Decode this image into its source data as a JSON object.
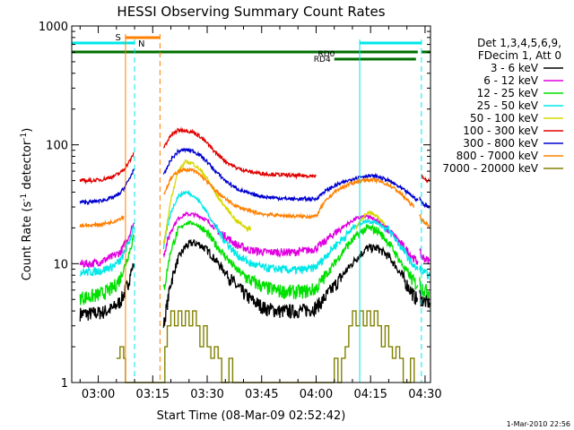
{
  "chart_data": {
    "type": "line",
    "title": "HESSI Observing Summary Count Rates",
    "xlabel": "Start Time (08-Mar-09 02:52:42)",
    "ylabel_main": "Count Rate (s",
    "ylabel_exp1": "-1",
    "ylabel_mid": " detector",
    "ylabel_exp2": "-1",
    "ylabel_close": ")",
    "footer_date": "1-Mar-2010 22:56",
    "y_scale": "log",
    "ylim": [
      1,
      1000
    ],
    "xlim": [
      "02:52:42",
      "04:31:30"
    ],
    "x_ticks": [
      "03:00",
      "03:15",
      "03:30",
      "03:45",
      "04:00",
      "04:15",
      "04:30"
    ],
    "y_ticks": [
      "1",
      "10",
      "100",
      "1000"
    ],
    "legend": {
      "header": [
        "Det 1,3,4,5,6,9,",
        "FDecim 1, Att 0"
      ],
      "entries": [
        {
          "label": "3 - 6 keV",
          "color": "#000000"
        },
        {
          "label": "6 - 12 keV",
          "color": "#e000e0"
        },
        {
          "label": "12 - 25 keV",
          "color": "#00e000"
        },
        {
          "label": "25 - 50 keV",
          "color": "#00e8e8"
        },
        {
          "label": "50 - 100 keV",
          "color": "#d8d800"
        },
        {
          "label": "100 - 300 keV",
          "color": "#e00000"
        },
        {
          "label": "300 - 800 keV",
          "color": "#0000d0"
        },
        {
          "label": "800 - 7000 keV",
          "color": "#ff8000"
        },
        {
          "label": "7000 - 20000 keV",
          "color": "#808000"
        }
      ]
    },
    "flag_labels": {
      "saa": "S",
      "night": "N",
      "rd0": "RD0",
      "rd4": "RD4"
    },
    "flag_colors": {
      "saa": "#ff8000",
      "night": "#00e8e8",
      "rd": "#007000"
    },
    "night_edges": [
      "03:10:00",
      "04:29:00"
    ],
    "day_edges": [
      "04:12:00"
    ],
    "saa_edges": [
      "03:07:30",
      "03:17:00"
    ],
    "saa_interval": [
      "03:07:30",
      "03:17:00"
    ],
    "night_intervals": [
      [
        "02:52:42",
        "03:10:00"
      ],
      [
        "04:12:00",
        "04:29:00"
      ]
    ],
    "rd0_intervals": [
      [
        "02:52:42",
        "04:28:00"
      ],
      [
        "04:29:00",
        "04:31:30"
      ]
    ],
    "rd4_interval": [
      "04:05:00",
      "04:27:30"
    ],
    "series": [
      {
        "name": "3 - 6 keV",
        "color": "#000000",
        "segments": [
          {
            "t": [
              "02:55",
              "02:58",
              "03:01",
              "03:04",
              "03:06",
              "03:07",
              "03:08",
              "03:09",
              "03:09:50"
            ],
            "v": [
              3.8,
              3.8,
              3.9,
              4.2,
              4.8,
              5.5,
              6.5,
              8.5,
              10
            ]
          },
          {
            "t": [
              "03:18:00",
              "03:20",
              "03:22",
              "03:24",
              "03:26",
              "03:28",
              "03:30",
              "03:32",
              "03:35",
              "03:38",
              "03:42",
              "03:46",
              "03:50",
              "03:54",
              "03:58",
              "04:00",
              "04:02",
              "04:05",
              "04:08",
              "04:11",
              "04:14",
              "04:17",
              "04:20",
              "04:22",
              "04:24",
              "04:26",
              "04:27",
              "04:28"
            ],
            "v": [
              3.0,
              7,
              11,
              14,
              15,
              14.5,
              13,
              11,
              8.5,
              6.5,
              5.0,
              4.2,
              4.0,
              4.0,
              4.1,
              4.3,
              5.0,
              6.5,
              8.5,
              11,
              13.5,
              13.5,
              11.5,
              9.5,
              7.5,
              6.0,
              5.3,
              5.0
            ]
          },
          {
            "t": [
              "04:28:30",
              "04:29",
              "04:30",
              "04:31:15"
            ],
            "v": [
              5.5,
              5.0,
              4.8,
              4.7
            ]
          }
        ]
      },
      {
        "name": "6 - 12 keV",
        "color": "#e000e0",
        "segments": [
          {
            "t": [
              "02:55",
              "02:58",
              "03:01",
              "03:04",
              "03:06",
              "03:07",
              "03:08",
              "03:09",
              "03:09:50"
            ],
            "v": [
              10,
              10,
              10.5,
              11.5,
              12.5,
              14,
              16,
              19,
              22
            ]
          },
          {
            "t": [
              "03:18:00",
              "03:20",
              "03:22",
              "03:24",
              "03:26",
              "03:28",
              "03:30",
              "03:32",
              "03:35",
              "03:38",
              "03:42",
              "03:46",
              "03:50",
              "03:54",
              "03:58",
              "04:00",
              "04:02",
              "04:05",
              "04:08",
              "04:11",
              "04:14",
              "04:17",
              "04:20",
              "04:22",
              "04:24",
              "04:26",
              "04:27",
              "04:28"
            ],
            "v": [
              12,
              19,
              24,
              26,
              26,
              25,
              23,
              20,
              17,
              14.5,
              13,
              12.5,
              12.5,
              12.5,
              13,
              13.5,
              15,
              18,
              21,
              24,
              25,
              23,
              19,
              16.5,
              14,
              12,
              11,
              10.5
            ]
          },
          {
            "t": [
              "04:28:30",
              "04:29",
              "04:30",
              "04:31:15"
            ],
            "v": [
              12.5,
              11.5,
              11,
              10.5
            ]
          }
        ]
      },
      {
        "name": "12 - 25 keV",
        "color": "#00e000",
        "segments": [
          {
            "t": [
              "02:55",
              "02:58",
              "03:01",
              "03:04",
              "03:06",
              "03:07",
              "03:08",
              "03:09",
              "03:09:50"
            ],
            "v": [
              5.2,
              5.3,
              5.6,
              6.2,
              7.5,
              9,
              11,
              14,
              17
            ]
          },
          {
            "t": [
              "03:18:00",
              "03:20",
              "03:22",
              "03:24",
              "03:26",
              "03:28",
              "03:30",
              "03:32",
              "03:35",
              "03:38",
              "03:42",
              "03:46",
              "03:50",
              "03:54",
              "03:58",
              "04:00",
              "04:02",
              "04:05",
              "04:08",
              "04:11",
              "04:14",
              "04:17",
              "04:20",
              "04:22",
              "04:24",
              "04:26",
              "04:27",
              "04:28"
            ],
            "v": [
              6,
              13,
              19,
              22,
              22,
              20.5,
              18,
              15,
              11.5,
              9,
              7.2,
              6.3,
              5.9,
              5.8,
              5.9,
              6.2,
              7.5,
              10,
              13.5,
              17,
              20,
              19,
              15,
              12,
              9.5,
              7.8,
              7.0,
              6.6
            ]
          },
          {
            "t": [
              "04:28:30",
              "04:29",
              "04:30",
              "04:31:15"
            ],
            "v": [
              7.0,
              6.4,
              6.0,
              5.8
            ]
          }
        ]
      },
      {
        "name": "25 - 50 keV",
        "color": "#00e8e8",
        "segments": [
          {
            "t": [
              "02:55",
              "02:58",
              "03:01",
              "03:04",
              "03:06",
              "03:07",
              "03:08",
              "03:09",
              "03:09:50"
            ],
            "v": [
              8.5,
              8.5,
              8.8,
              9.5,
              10.5,
              12,
              14,
              17,
              21
            ]
          },
          {
            "t": [
              "03:18:00",
              "03:20",
              "03:22",
              "03:24",
              "03:26",
              "03:28",
              "03:30",
              "03:32",
              "03:35",
              "03:38",
              "03:42",
              "03:46",
              "03:50",
              "03:54",
              "03:58",
              "04:00",
              "04:02",
              "04:05",
              "04:08",
              "04:11",
              "04:14",
              "04:17",
              "04:20",
              "04:22",
              "04:24",
              "04:26",
              "04:27",
              "04:28"
            ],
            "v": [
              14,
              27,
              37,
              40,
              38,
              33,
              27,
              21,
              15.5,
              12,
              10,
              9.2,
              9.0,
              8.8,
              9.0,
              9.4,
              11,
              14,
              17,
              21,
              23,
              22,
              19,
              16,
              13,
              10.5,
              9.5,
              8.8
            ]
          },
          {
            "t": [
              "04:28:30",
              "04:29",
              "04:30",
              "04:31:15"
            ],
            "v": [
              9.5,
              8.8,
              8.3,
              8.0
            ]
          }
        ]
      },
      {
        "name": "50 - 100 keV",
        "color": "#d8d800",
        "segments": [
          {
            "t": [
              "03:18:00",
              "03:20",
              "03:22",
              "03:24",
              "03:26",
              "03:28",
              "03:30",
              "03:32",
              "03:35",
              "03:38",
              "03:42"
            ],
            "v": [
              14,
              35,
              60,
              72,
              70,
              62,
              52,
              40,
              30,
              23,
              19
            ]
          },
          {
            "t": [
              "04:11",
              "04:13",
              "04:15",
              "04:17",
              "04:19"
            ],
            "v": [
              20,
              25,
              27,
              25,
              21
            ]
          }
        ]
      },
      {
        "name": "100 - 300 keV",
        "color": "#e00000",
        "segments": [
          {
            "t": [
              "02:55",
              "02:58",
              "03:01",
              "03:04",
              "03:06",
              "03:07",
              "03:08",
              "03:09",
              "03:09:50"
            ],
            "v": [
              50,
              50,
              51,
              54,
              58,
              62,
              68,
              76,
              85
            ]
          },
          {
            "t": [
              "03:18:00",
              "03:20",
              "03:22",
              "03:24",
              "03:26",
              "03:28",
              "03:30",
              "03:32",
              "03:35",
              "03:38",
              "03:42",
              "03:46",
              "03:50",
              "03:54",
              "03:58",
              "04:00"
            ],
            "v": [
              95,
              120,
              133,
              133,
              128,
              118,
              103,
              88,
              73,
              64,
              59,
              57,
              56,
              55,
              55,
              55
            ]
          },
          {
            "t": [
              "04:29",
              "04:29:40",
              "04:30:20",
              "04:31:15"
            ],
            "v": [
              55,
              52,
              50,
              50
            ]
          }
        ]
      },
      {
        "name": "300 - 800 keV",
        "color": "#0000d0",
        "segments": [
          {
            "t": [
              "02:55",
              "02:58",
              "03:01",
              "03:04",
              "03:06",
              "03:07",
              "03:08",
              "03:09",
              "03:09:50"
            ],
            "v": [
              33,
              33,
              34,
              36,
              39,
              43,
              48,
              55,
              63
            ]
          },
          {
            "t": [
              "03:18:00",
              "03:20",
              "03:22",
              "03:24",
              "03:26",
              "03:28",
              "03:30",
              "03:32",
              "03:35",
              "03:38",
              "03:42",
              "03:46",
              "03:50",
              "03:54",
              "03:58",
              "04:00",
              "04:02",
              "04:05",
              "04:08",
              "04:11",
              "04:14",
              "04:17",
              "04:20",
              "04:22",
              "04:24",
              "04:26",
              "04:27",
              "04:28"
            ],
            "v": [
              55,
              75,
              88,
              91,
              89,
              82,
              72,
              61,
              50,
              43,
              38.5,
              36.5,
              35.5,
              35,
              35,
              35,
              40,
              45,
              49,
              53,
              55,
              54,
              50,
              46,
              42,
              38,
              36,
              34
            ]
          },
          {
            "t": [
              "04:28:30",
              "04:29",
              "04:30",
              "04:31:15"
            ],
            "v": [
              36,
              33,
              31,
              30
            ]
          }
        ]
      },
      {
        "name": "800 - 7000 keV",
        "color": "#ff8000",
        "segments": [
          {
            "t": [
              "02:55",
              "02:58",
              "03:01",
              "03:04",
              "03:06",
              "03:07"
            ],
            "v": [
              21,
              21,
              21.5,
              22.5,
              24,
              25
            ]
          },
          {
            "t": [
              "03:18:00",
              "03:20",
              "03:22",
              "03:24",
              "03:26",
              "03:28",
              "03:30",
              "03:32",
              "03:35",
              "03:38",
              "03:42",
              "03:46",
              "03:50",
              "03:54",
              "03:58",
              "04:00",
              "04:02",
              "04:05",
              "04:08",
              "04:11",
              "04:14",
              "04:17",
              "04:20",
              "04:22",
              "04:24",
              "04:26",
              "04:27"
            ],
            "v": [
              38,
              52,
              60,
              62,
              61,
              56,
              49,
              42,
              35,
              30.5,
              27.5,
              26,
              25.5,
              25,
              25,
              25,
              32,
              40,
              45,
              49,
              51,
              50,
              46,
              42,
              37,
              32,
              30
            ]
          },
          {
            "t": [
              "04:28:30",
              "04:29",
              "04:30",
              "04:31:15"
            ],
            "v": [
              26,
              23.5,
              22,
              21
            ]
          }
        ]
      }
    ],
    "series_7000": {
      "name": "7000 - 20000 keV",
      "color": "#808000",
      "steps": [
        [
          "03:05:00",
          1.6
        ],
        [
          "03:06:00",
          2.0
        ],
        [
          "03:07:00",
          1.6
        ],
        [
          "03:07:30",
          1.0
        ],
        [
          "03:18:00",
          1.0
        ],
        [
          "03:18:20",
          2.0
        ],
        [
          "03:19:00",
          3.0
        ],
        [
          "03:20:00",
          4.0
        ],
        [
          "03:21:00",
          3.0
        ],
        [
          "03:22:00",
          4.0
        ],
        [
          "03:23:00",
          3.0
        ],
        [
          "03:24:00",
          4.0
        ],
        [
          "03:25:00",
          3.0
        ],
        [
          "03:26:00",
          4.0
        ],
        [
          "03:27:00",
          3.0
        ],
        [
          "03:28:00",
          2.0
        ],
        [
          "03:29:00",
          3.0
        ],
        [
          "03:30:00",
          2.0
        ],
        [
          "03:31:00",
          1.6
        ],
        [
          "03:32:00",
          2.0
        ],
        [
          "03:33:00",
          1.6
        ],
        [
          "03:34:00",
          1.0
        ],
        [
          "03:36:00",
          1.6
        ],
        [
          "03:37:00",
          1.0
        ],
        [
          "04:05:00",
          1.6
        ],
        [
          "04:06:00",
          1.0
        ],
        [
          "04:07:00",
          1.6
        ],
        [
          "04:08:00",
          2.0
        ],
        [
          "04:09:00",
          3.0
        ],
        [
          "04:10:00",
          4.0
        ],
        [
          "04:11:00",
          3.0
        ],
        [
          "04:12:00",
          4.0
        ],
        [
          "04:13:00",
          3.0
        ],
        [
          "04:14:00",
          4.0
        ],
        [
          "04:15:00",
          3.0
        ],
        [
          "04:16:00",
          4.0
        ],
        [
          "04:17:00",
          3.0
        ],
        [
          "04:18:00",
          2.0
        ],
        [
          "04:19:00",
          3.0
        ],
        [
          "04:20:00",
          2.0
        ],
        [
          "04:21:00",
          1.6
        ],
        [
          "04:22:00",
          2.0
        ],
        [
          "04:23:00",
          1.6
        ],
        [
          "04:24:00",
          1.0
        ],
        [
          "04:26:00",
          1.6
        ],
        [
          "04:27:00",
          1.0
        ]
      ]
    }
  }
}
